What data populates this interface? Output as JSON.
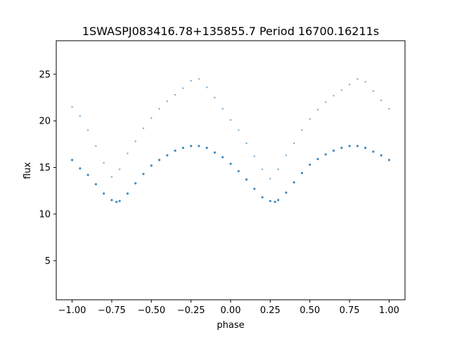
{
  "chart_data": {
    "type": "scatter",
    "title": "1SWASPJ083416.78+135855.7 Period 16700.16211s",
    "xlabel": "phase",
    "ylabel": "flux",
    "xlim": [
      -1.1,
      1.1
    ],
    "ylim": [
      0.8,
      28.6
    ],
    "x_ticks": [
      -1.0,
      -0.75,
      -0.5,
      -0.25,
      0.0,
      0.25,
      0.5,
      0.75,
      1.0
    ],
    "x_tick_labels": [
      "−1.00",
      "−0.75",
      "−0.50",
      "−0.25",
      "0.00",
      "0.25",
      "0.50",
      "0.75",
      "1.00"
    ],
    "y_ticks": [
      5,
      10,
      15,
      20,
      25
    ],
    "y_tick_labels": [
      "5",
      "10",
      "15",
      "20",
      "25"
    ],
    "grid": false,
    "legend": "none",
    "marker_color": "#1f77b4",
    "series": [
      {
        "x": [
          -1.0,
          -0.95,
          -0.9,
          -0.85,
          -0.8,
          -0.75,
          -0.72,
          -0.7,
          -0.65,
          -0.6,
          -0.55,
          -0.5,
          -0.45,
          -0.4,
          -0.35,
          -0.3,
          -0.25,
          -0.2,
          -0.15,
          -0.1,
          -0.05,
          0.0,
          0.05,
          0.1,
          0.15,
          0.2,
          0.25,
          0.28,
          0.3,
          0.35,
          0.4,
          0.45,
          0.5,
          0.55,
          0.6,
          0.65,
          0.7,
          0.75,
          0.8,
          0.85,
          0.9,
          0.95,
          1.0
        ],
        "y": [
          15.8,
          14.9,
          14.2,
          13.2,
          12.2,
          11.5,
          11.3,
          11.4,
          12.2,
          13.3,
          14.3,
          15.2,
          15.8,
          16.3,
          16.8,
          17.1,
          17.3,
          17.3,
          17.1,
          16.6,
          16.1,
          15.4,
          14.6,
          13.7,
          12.7,
          11.8,
          11.4,
          11.3,
          11.5,
          12.3,
          13.4,
          14.4,
          15.3,
          15.9,
          16.4,
          16.8,
          17.1,
          17.3,
          17.3,
          17.1,
          16.7,
          16.3,
          15.8
        ]
      },
      {
        "x": [
          -1.0,
          -0.95,
          -0.9,
          -0.85,
          -0.8,
          -0.75,
          -0.7,
          -0.65,
          -0.6,
          -0.55,
          -0.5,
          -0.45,
          -0.4,
          -0.35,
          -0.3,
          -0.25,
          -0.2,
          -0.15,
          -0.1,
          -0.05,
          0.0,
          0.05,
          0.1,
          0.15,
          0.2,
          0.25,
          0.3,
          0.35,
          0.4,
          0.45,
          0.5,
          0.55,
          0.6,
          0.65,
          0.7,
          0.75,
          0.8,
          0.85,
          0.9,
          0.95,
          1.0
        ],
        "y": [
          21.5,
          20.5,
          19.0,
          17.3,
          15.5,
          14.0,
          14.8,
          16.5,
          17.8,
          19.2,
          20.3,
          21.3,
          22.1,
          22.8,
          23.5,
          24.3,
          24.5,
          23.6,
          22.5,
          21.3,
          20.1,
          19.0,
          17.6,
          16.2,
          14.8,
          13.8,
          14.8,
          16.3,
          17.6,
          19.0,
          20.2,
          21.2,
          22.0,
          22.7,
          23.3,
          23.9,
          24.5,
          24.2,
          23.2,
          22.2,
          21.3
        ]
      }
    ]
  }
}
